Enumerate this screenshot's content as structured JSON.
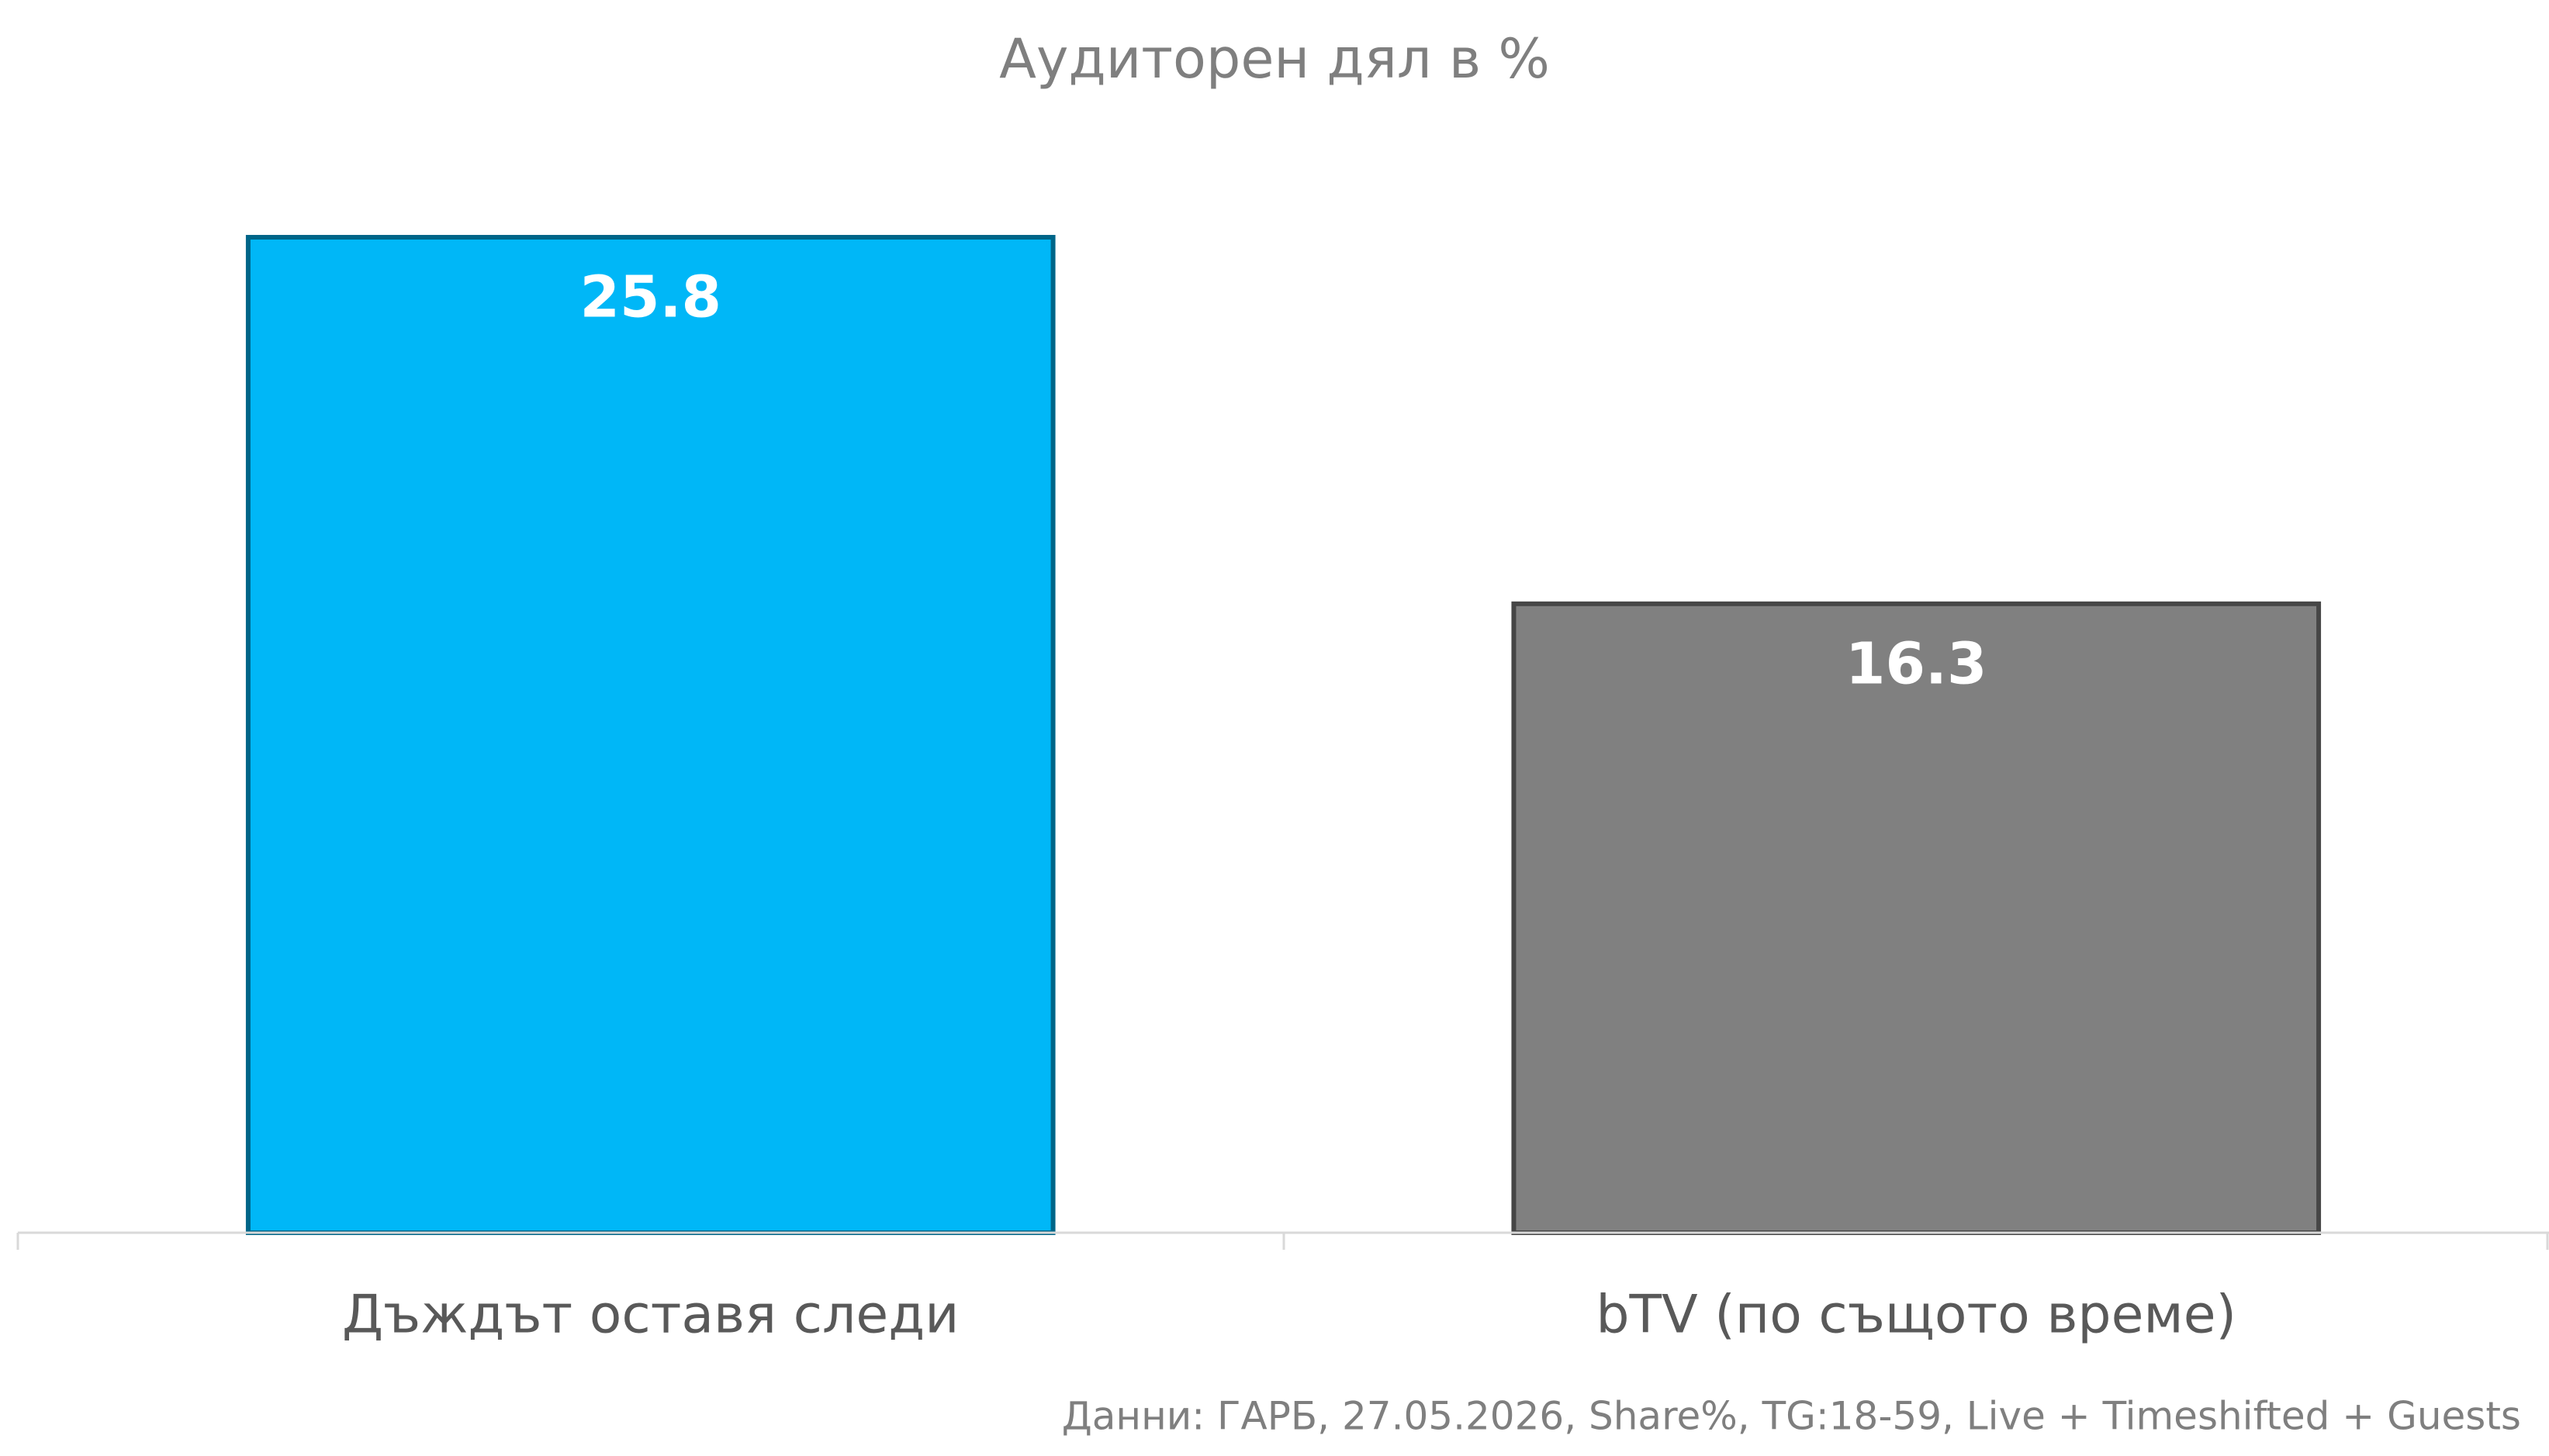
{
  "chart_data": {
    "type": "bar",
    "title": "Аудиторен дял в %",
    "categories": [
      "Дъждът оставя следи",
      "bTV (по същото време)"
    ],
    "values": [
      25.8,
      16.3
    ],
    "colors": [
      "#00b7f7",
      "#808080"
    ],
    "source": "Данни: ГАРБ, 27.05.2026, Share%, TG:18-59, Live + Timeshifted + Guests"
  }
}
